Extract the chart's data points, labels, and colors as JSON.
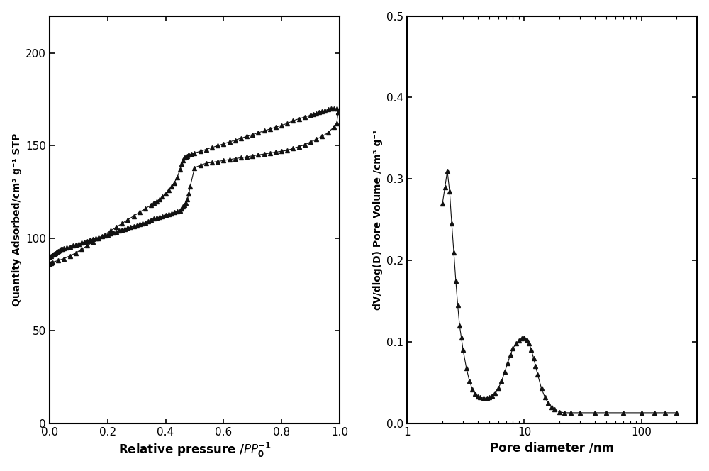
{
  "left_plot": {
    "ylabel": "Quantity Adsorbed/cm³ g⁻¹ STP",
    "xlim": [
      0.0,
      1.0
    ],
    "ylim": [
      0,
      220
    ],
    "yticks": [
      0,
      50,
      100,
      150,
      200
    ],
    "xticks": [
      0.0,
      0.2,
      0.4,
      0.6,
      0.8,
      1.0
    ],
    "adsorption_x": [
      0.001,
      0.005,
      0.01,
      0.015,
      0.02,
      0.025,
      0.03,
      0.035,
      0.04,
      0.045,
      0.05,
      0.06,
      0.07,
      0.08,
      0.09,
      0.1,
      0.11,
      0.12,
      0.13,
      0.14,
      0.15,
      0.16,
      0.17,
      0.18,
      0.19,
      0.2,
      0.21,
      0.22,
      0.23,
      0.24,
      0.25,
      0.26,
      0.27,
      0.28,
      0.29,
      0.3,
      0.31,
      0.32,
      0.33,
      0.34,
      0.35,
      0.36,
      0.37,
      0.38,
      0.39,
      0.4,
      0.41,
      0.42,
      0.43,
      0.44,
      0.45,
      0.455,
      0.46,
      0.465,
      0.47,
      0.475,
      0.48,
      0.485,
      0.5,
      0.52,
      0.54,
      0.56,
      0.58,
      0.6,
      0.62,
      0.64,
      0.66,
      0.68,
      0.7,
      0.72,
      0.74,
      0.76,
      0.78,
      0.8,
      0.82,
      0.84,
      0.86,
      0.88,
      0.9,
      0.92,
      0.94,
      0.96,
      0.98,
      0.99,
      0.995
    ],
    "adsorption_y": [
      90,
      90.5,
      91,
      91.5,
      92,
      92.5,
      93,
      93.5,
      94,
      94.3,
      94.5,
      95,
      95.5,
      96,
      96.5,
      97,
      97.5,
      98,
      98.5,
      99,
      99.5,
      100,
      100.5,
      101,
      101.5,
      102,
      102.5,
      103,
      103.5,
      104,
      104.5,
      105,
      105.5,
      106,
      106.5,
      107,
      107.5,
      108,
      108.5,
      109,
      110,
      110.5,
      111,
      111.5,
      112,
      112.5,
      113,
      113.5,
      114,
      114.5,
      115,
      116,
      117,
      118,
      119,
      121,
      124,
      128,
      138,
      139.5,
      140.5,
      141,
      141.5,
      142,
      142.5,
      143,
      143.5,
      144,
      144.5,
      145,
      145.5,
      146,
      146.5,
      147,
      147.5,
      148.5,
      149.5,
      150.5,
      152,
      153.5,
      155,
      157,
      160,
      162,
      168
    ],
    "desorption_x": [
      0.995,
      0.99,
      0.98,
      0.97,
      0.96,
      0.95,
      0.94,
      0.93,
      0.92,
      0.91,
      0.9,
      0.88,
      0.86,
      0.84,
      0.82,
      0.8,
      0.78,
      0.76,
      0.74,
      0.72,
      0.7,
      0.68,
      0.66,
      0.64,
      0.62,
      0.6,
      0.58,
      0.56,
      0.54,
      0.52,
      0.5,
      0.49,
      0.48,
      0.475,
      0.47,
      0.465,
      0.46,
      0.455,
      0.45,
      0.44,
      0.43,
      0.42,
      0.41,
      0.4,
      0.39,
      0.38,
      0.37,
      0.36,
      0.35,
      0.33,
      0.31,
      0.29,
      0.27,
      0.25,
      0.23,
      0.21,
      0.19,
      0.17,
      0.15,
      0.13,
      0.11,
      0.09,
      0.07,
      0.05,
      0.03,
      0.01,
      0.005,
      0.001
    ],
    "desorption_y": [
      168,
      170,
      170,
      170,
      169.5,
      169,
      168.5,
      168,
      167.5,
      167,
      166.5,
      165.5,
      164.5,
      163.5,
      162,
      161,
      160,
      159,
      158,
      157,
      156,
      155,
      154,
      153,
      152,
      151,
      150,
      149,
      148,
      147,
      146,
      145.5,
      145,
      144.5,
      144,
      143.5,
      142,
      140,
      137,
      133,
      130,
      128,
      126,
      124,
      122.5,
      121,
      120,
      119,
      118,
      116,
      114,
      112,
      110,
      108,
      106,
      104,
      102,
      100,
      98,
      96,
      94,
      92,
      90.5,
      89,
      88,
      87,
      86.5,
      86
    ]
  },
  "right_plot": {
    "xlabel": "Pore diameter /nm",
    "ylabel": "dV/dlog(D) Pore Volume /cm³ g⁻¹",
    "ylim": [
      0.0,
      0.5
    ],
    "yticks": [
      0.0,
      0.1,
      0.2,
      0.3,
      0.4,
      0.5
    ],
    "pore_x": [
      2.0,
      2.1,
      2.2,
      2.3,
      2.4,
      2.5,
      2.6,
      2.7,
      2.8,
      2.9,
      3.0,
      3.2,
      3.4,
      3.6,
      3.8,
      4.0,
      4.2,
      4.5,
      4.8,
      5.0,
      5.3,
      5.6,
      6.0,
      6.4,
      6.8,
      7.2,
      7.6,
      8.0,
      8.5,
      9.0,
      9.5,
      10.0,
      10.5,
      11.0,
      11.5,
      12.0,
      12.5,
      13.0,
      14.0,
      15.0,
      16.0,
      17.0,
      18.0,
      20.0,
      22.0,
      25.0,
      30.0,
      40.0,
      50.0,
      70.0,
      100.0,
      130.0,
      160.0,
      200.0
    ],
    "pore_y": [
      0.27,
      0.29,
      0.31,
      0.285,
      0.245,
      0.21,
      0.175,
      0.145,
      0.12,
      0.105,
      0.09,
      0.068,
      0.052,
      0.042,
      0.036,
      0.033,
      0.032,
      0.031,
      0.031,
      0.032,
      0.034,
      0.037,
      0.043,
      0.052,
      0.063,
      0.074,
      0.084,
      0.092,
      0.098,
      0.102,
      0.104,
      0.105,
      0.103,
      0.098,
      0.09,
      0.08,
      0.07,
      0.06,
      0.043,
      0.032,
      0.025,
      0.02,
      0.017,
      0.014,
      0.013,
      0.013,
      0.013,
      0.013,
      0.013,
      0.013,
      0.013,
      0.013,
      0.013,
      0.013
    ]
  },
  "marker": "^",
  "markersize": 4,
  "linewidth": 0.8,
  "color": "#111111",
  "background_color": "#ffffff",
  "figure_width": 10.0,
  "figure_height": 6.64,
  "dpi": 100
}
